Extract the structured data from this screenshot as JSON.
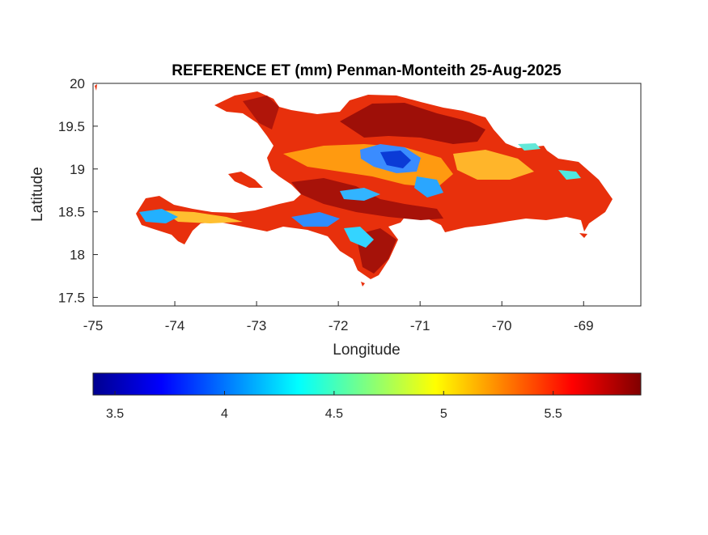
{
  "chart_data": {
    "type": "heatmap",
    "title": "REFERENCE ET (mm) Penman-Monteith 25-Aug-2025",
    "xlabel": "Longitude",
    "ylabel": "Latitude",
    "xlim": [
      -75,
      -68.3
    ],
    "ylim": [
      17.4,
      20
    ],
    "x_ticks": [
      "-75",
      "-74",
      "-73",
      "-72",
      "-71",
      "-70",
      "-69"
    ],
    "y_ticks": [
      "17.5",
      "18",
      "18.5",
      "19",
      "19.5",
      "20"
    ],
    "colorbar": {
      "label": "",
      "colormap": "jet",
      "range": [
        3.4,
        5.9
      ],
      "ticks": [
        "3.5",
        "4",
        "4.5",
        "5",
        "5.5"
      ],
      "colors": [
        "#00008f",
        "#0000ff",
        "#00ffff",
        "#ffff00",
        "#ff0000",
        "#800000"
      ]
    },
    "regions": [
      {
        "name": "",
        "value": 5.55
      },
      {
        "name": "",
        "value": 5.85
      },
      {
        "name": "",
        "value": 4.0
      },
      {
        "name": "",
        "value": 4.1
      },
      {
        "name": "",
        "value": 5.1
      }
    ]
  }
}
